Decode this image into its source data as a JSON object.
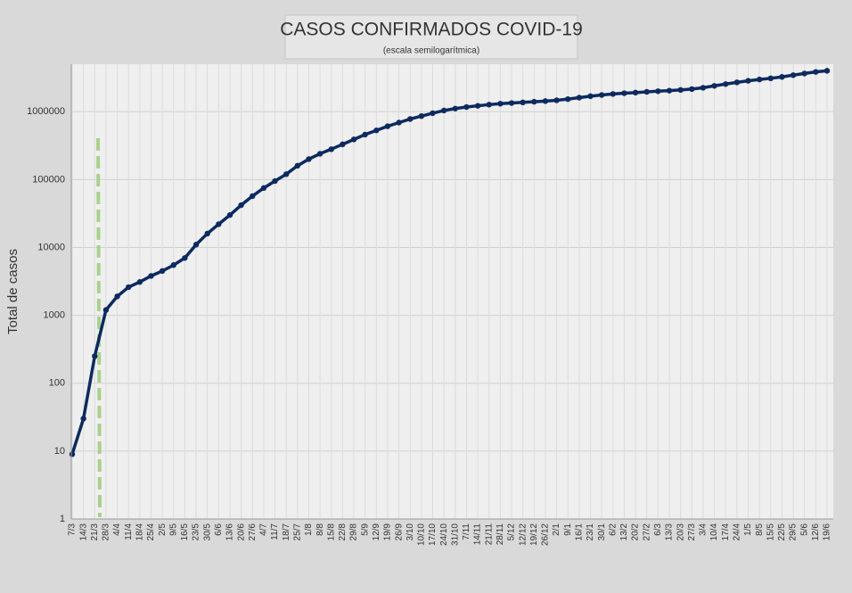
{
  "chart_data": {
    "type": "line",
    "title": "CASOS CONFIRMADOS COVID-19",
    "subtitle": "(escala semilogarítmica)",
    "y_label": "Total de casos",
    "log_scale": true,
    "grid": true,
    "color": "#0d2a5e",
    "categories": [
      "7/3",
      "14/3",
      "21/3",
      "28/3",
      "4/4",
      "11/4",
      "18/4",
      "25/4",
      "2/5",
      "9/5",
      "16/5",
      "23/5",
      "30/5",
      "6/6",
      "13/6",
      "20/6",
      "27/6",
      "4/7",
      "11/7",
      "18/7",
      "25/7",
      "1/8",
      "8/8",
      "15/8",
      "22/8",
      "29/8",
      "5/9",
      "12/9",
      "19/9",
      "26/9",
      "3/10",
      "10/10",
      "17/10",
      "24/10",
      "31/10",
      "7/11",
      "14/11",
      "21/11",
      "28/11",
      "5/12",
      "12/12",
      "19/12",
      "26/12",
      "2/1",
      "9/1",
      "16/1",
      "23/1",
      "30/1",
      "6/2",
      "13/2",
      "20/2",
      "27/2",
      "6/3",
      "13/3",
      "20/3",
      "27/3",
      "3/4",
      "10/4",
      "17/4",
      "24/4",
      "1/5",
      "8/5",
      "15/5",
      "22/5",
      "29/5",
      "5/6",
      "12/6",
      "19/6"
    ],
    "values": [
      9,
      30,
      250,
      1200,
      1900,
      2600,
      3100,
      3800,
      4500,
      5500,
      7000,
      11000,
      16000,
      22000,
      30000,
      42000,
      57000,
      75000,
      95000,
      120000,
      160000,
      200000,
      240000,
      280000,
      330000,
      390000,
      460000,
      530000,
      610000,
      690000,
      780000,
      860000,
      950000,
      1040000,
      1110000,
      1170000,
      1220000,
      1270000,
      1310000,
      1340000,
      1370000,
      1400000,
      1430000,
      1470000,
      1530000,
      1610000,
      1690000,
      1760000,
      1820000,
      1870000,
      1910000,
      1960000,
      2000000,
      2040000,
      2090000,
      2150000,
      2250000,
      2400000,
      2550000,
      2700000,
      2850000,
      2980000,
      3100000,
      3250000,
      3450000,
      3650000,
      3850000,
      4000000
    ],
    "ylim": [
      1,
      5000000
    ],
    "yticks": [
      1,
      10,
      100,
      1000,
      10000,
      100000,
      1000000
    ]
  }
}
